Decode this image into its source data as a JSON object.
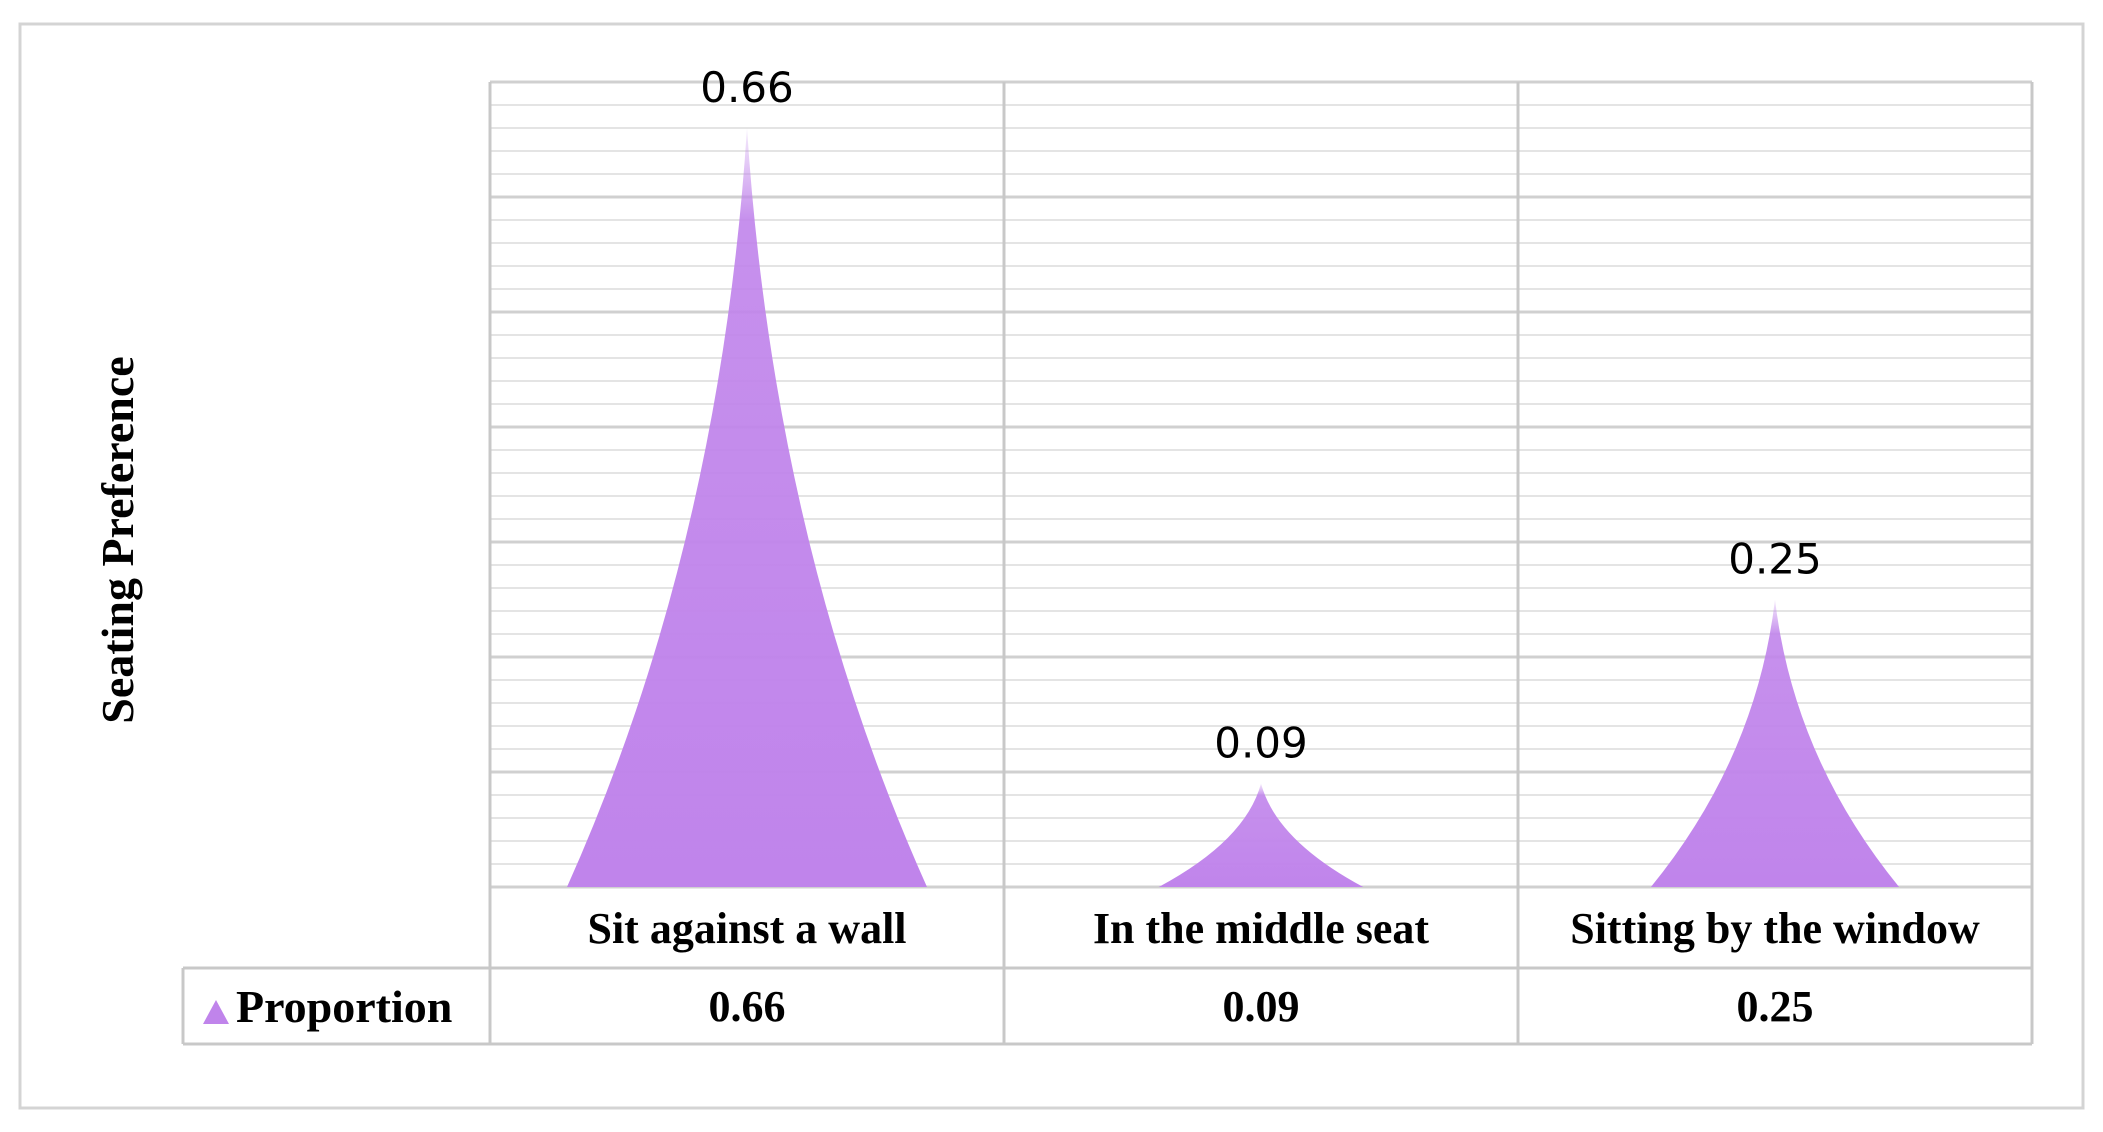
{
  "chart_data": {
    "type": "bar",
    "bar_shape": "cone",
    "categories": [
      "Sit against a wall",
      "In the middle seat",
      "Sitting by the window"
    ],
    "series": [
      {
        "name": "Proportion",
        "values": [
          0.66,
          0.09,
          0.25
        ],
        "data_labels": [
          "0.66",
          "0.09",
          "0.25"
        ],
        "table_values": [
          "0.66",
          "0.09",
          "0.25"
        ]
      }
    ],
    "ylabel": "Seating Preference",
    "ylim": [
      0,
      0.7
    ],
    "grid": true,
    "data_table": true,
    "colors": {
      "series": "#c084eb",
      "grid_major": "#d0d0d0",
      "grid_minor": "#e4e4e4",
      "border": "#c8c8c8"
    }
  }
}
